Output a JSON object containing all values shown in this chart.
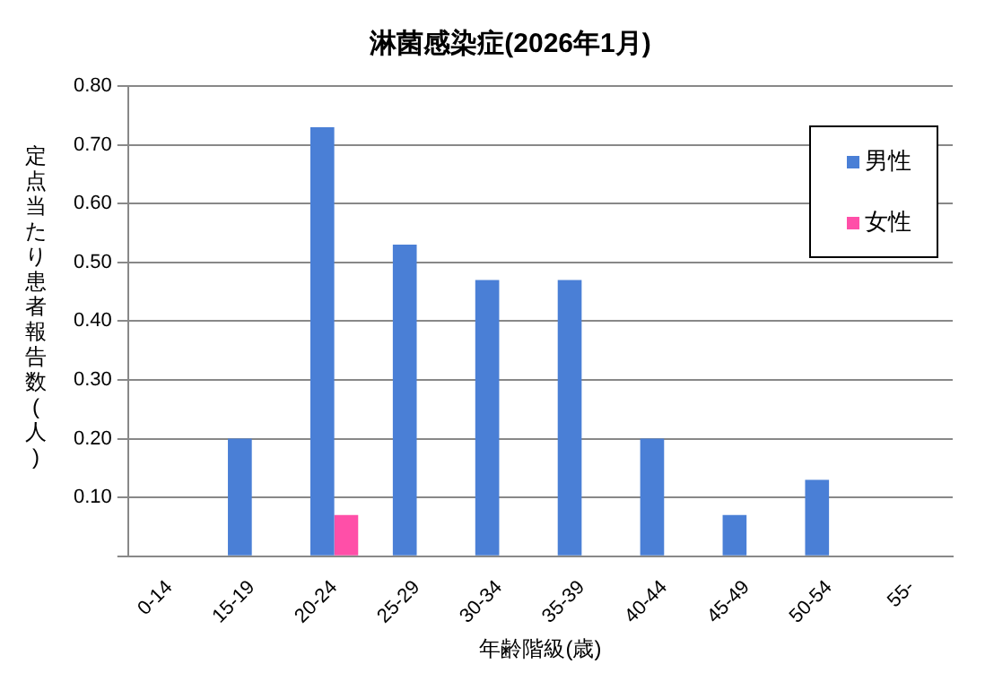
{
  "chart_data": {
    "type": "bar",
    "title": "淋菌感染症(2026年1月)",
    "xlabel": "年齢階級(歳)",
    "ylabel": "定点当たり患者報告数(人)",
    "categories": [
      "0-14",
      "15-19",
      "20-24",
      "25-29",
      "30-34",
      "35-39",
      "40-44",
      "45-49",
      "50-54",
      "55-"
    ],
    "series": [
      {
        "name": "男性",
        "color": "#4a7fd6",
        "values": [
          0,
          0.2,
          0.73,
          0.53,
          0.47,
          0.47,
          0.2,
          0.07,
          0.13,
          0
        ]
      },
      {
        "name": "女性",
        "color": "#ff4fa8",
        "values": [
          0,
          0,
          0.07,
          0,
          0,
          0,
          0,
          0,
          0,
          0
        ]
      }
    ],
    "ylim": [
      0,
      0.8
    ],
    "yticks": [
      {
        "value": 0,
        "label": null
      },
      {
        "value": 0.1,
        "label": "0.10"
      },
      {
        "value": 0.2,
        "label": "0.20"
      },
      {
        "value": 0.3,
        "label": "0.30"
      },
      {
        "value": 0.4,
        "label": "0.40"
      },
      {
        "value": 0.5,
        "label": "0.50"
      },
      {
        "value": 0.6,
        "label": "0.60"
      },
      {
        "value": 0.7,
        "label": "0.70"
      },
      {
        "value": 0.8,
        "label": "0.80"
      }
    ],
    "grid": "y",
    "legend": "top right"
  }
}
